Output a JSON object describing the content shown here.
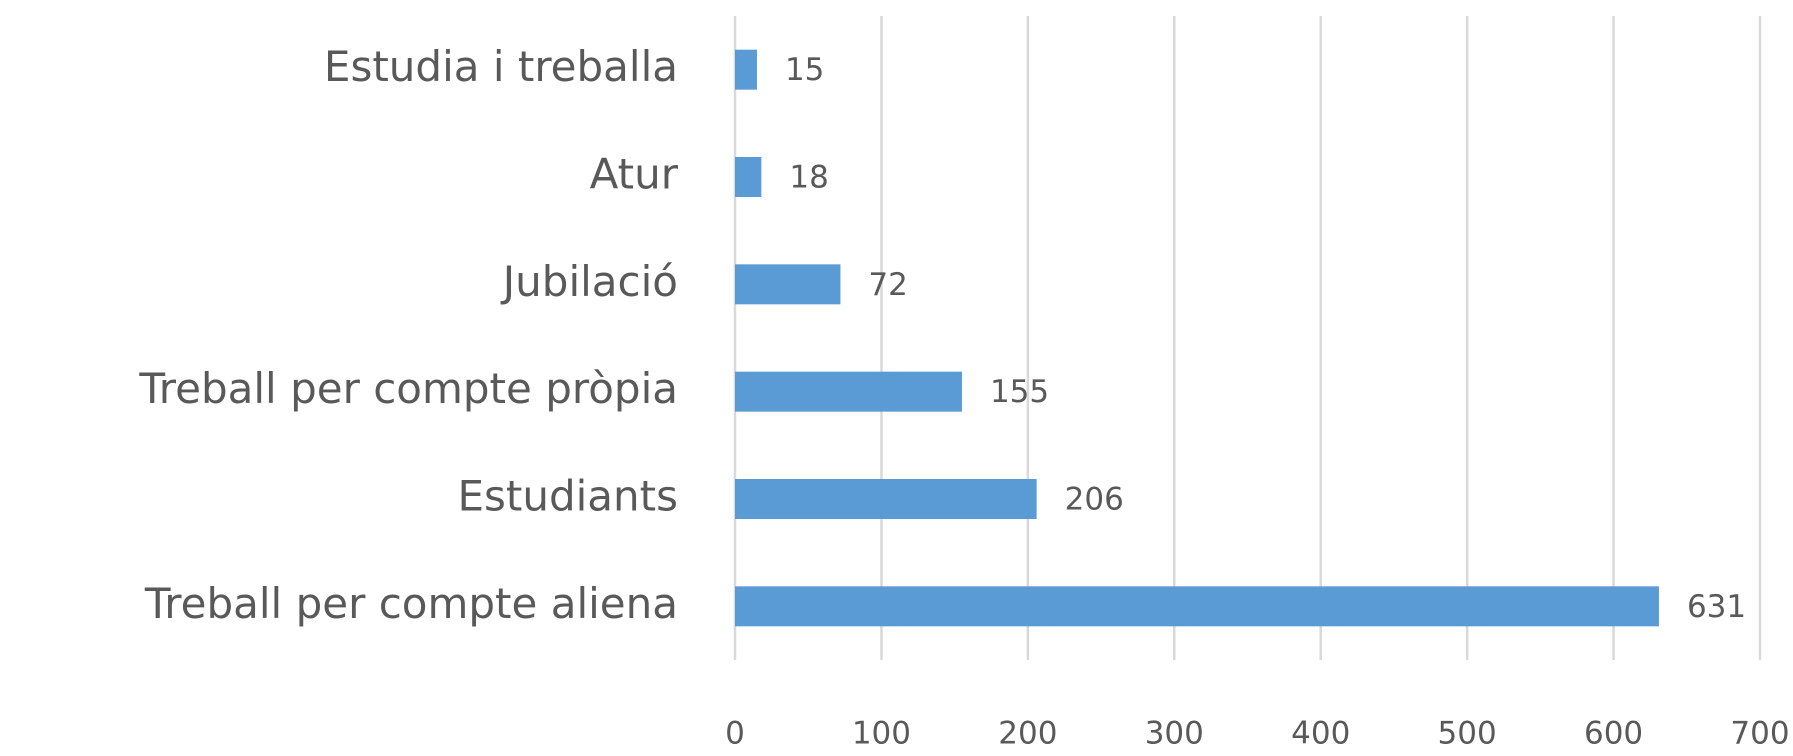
{
  "chart_data": {
    "type": "barh",
    "categories": [
      "Estudia i treballa",
      "Atur",
      "Jubilació",
      "Treball per compte pròpia",
      "Estudiants",
      "Treball per compte aliena"
    ],
    "values": [
      15,
      18,
      72,
      155,
      206,
      631
    ],
    "color": "#5b9bd5",
    "xlim": [
      0,
      700
    ],
    "xticks": [
      0,
      100,
      200,
      300,
      400,
      500,
      600,
      700
    ],
    "grid": true
  }
}
